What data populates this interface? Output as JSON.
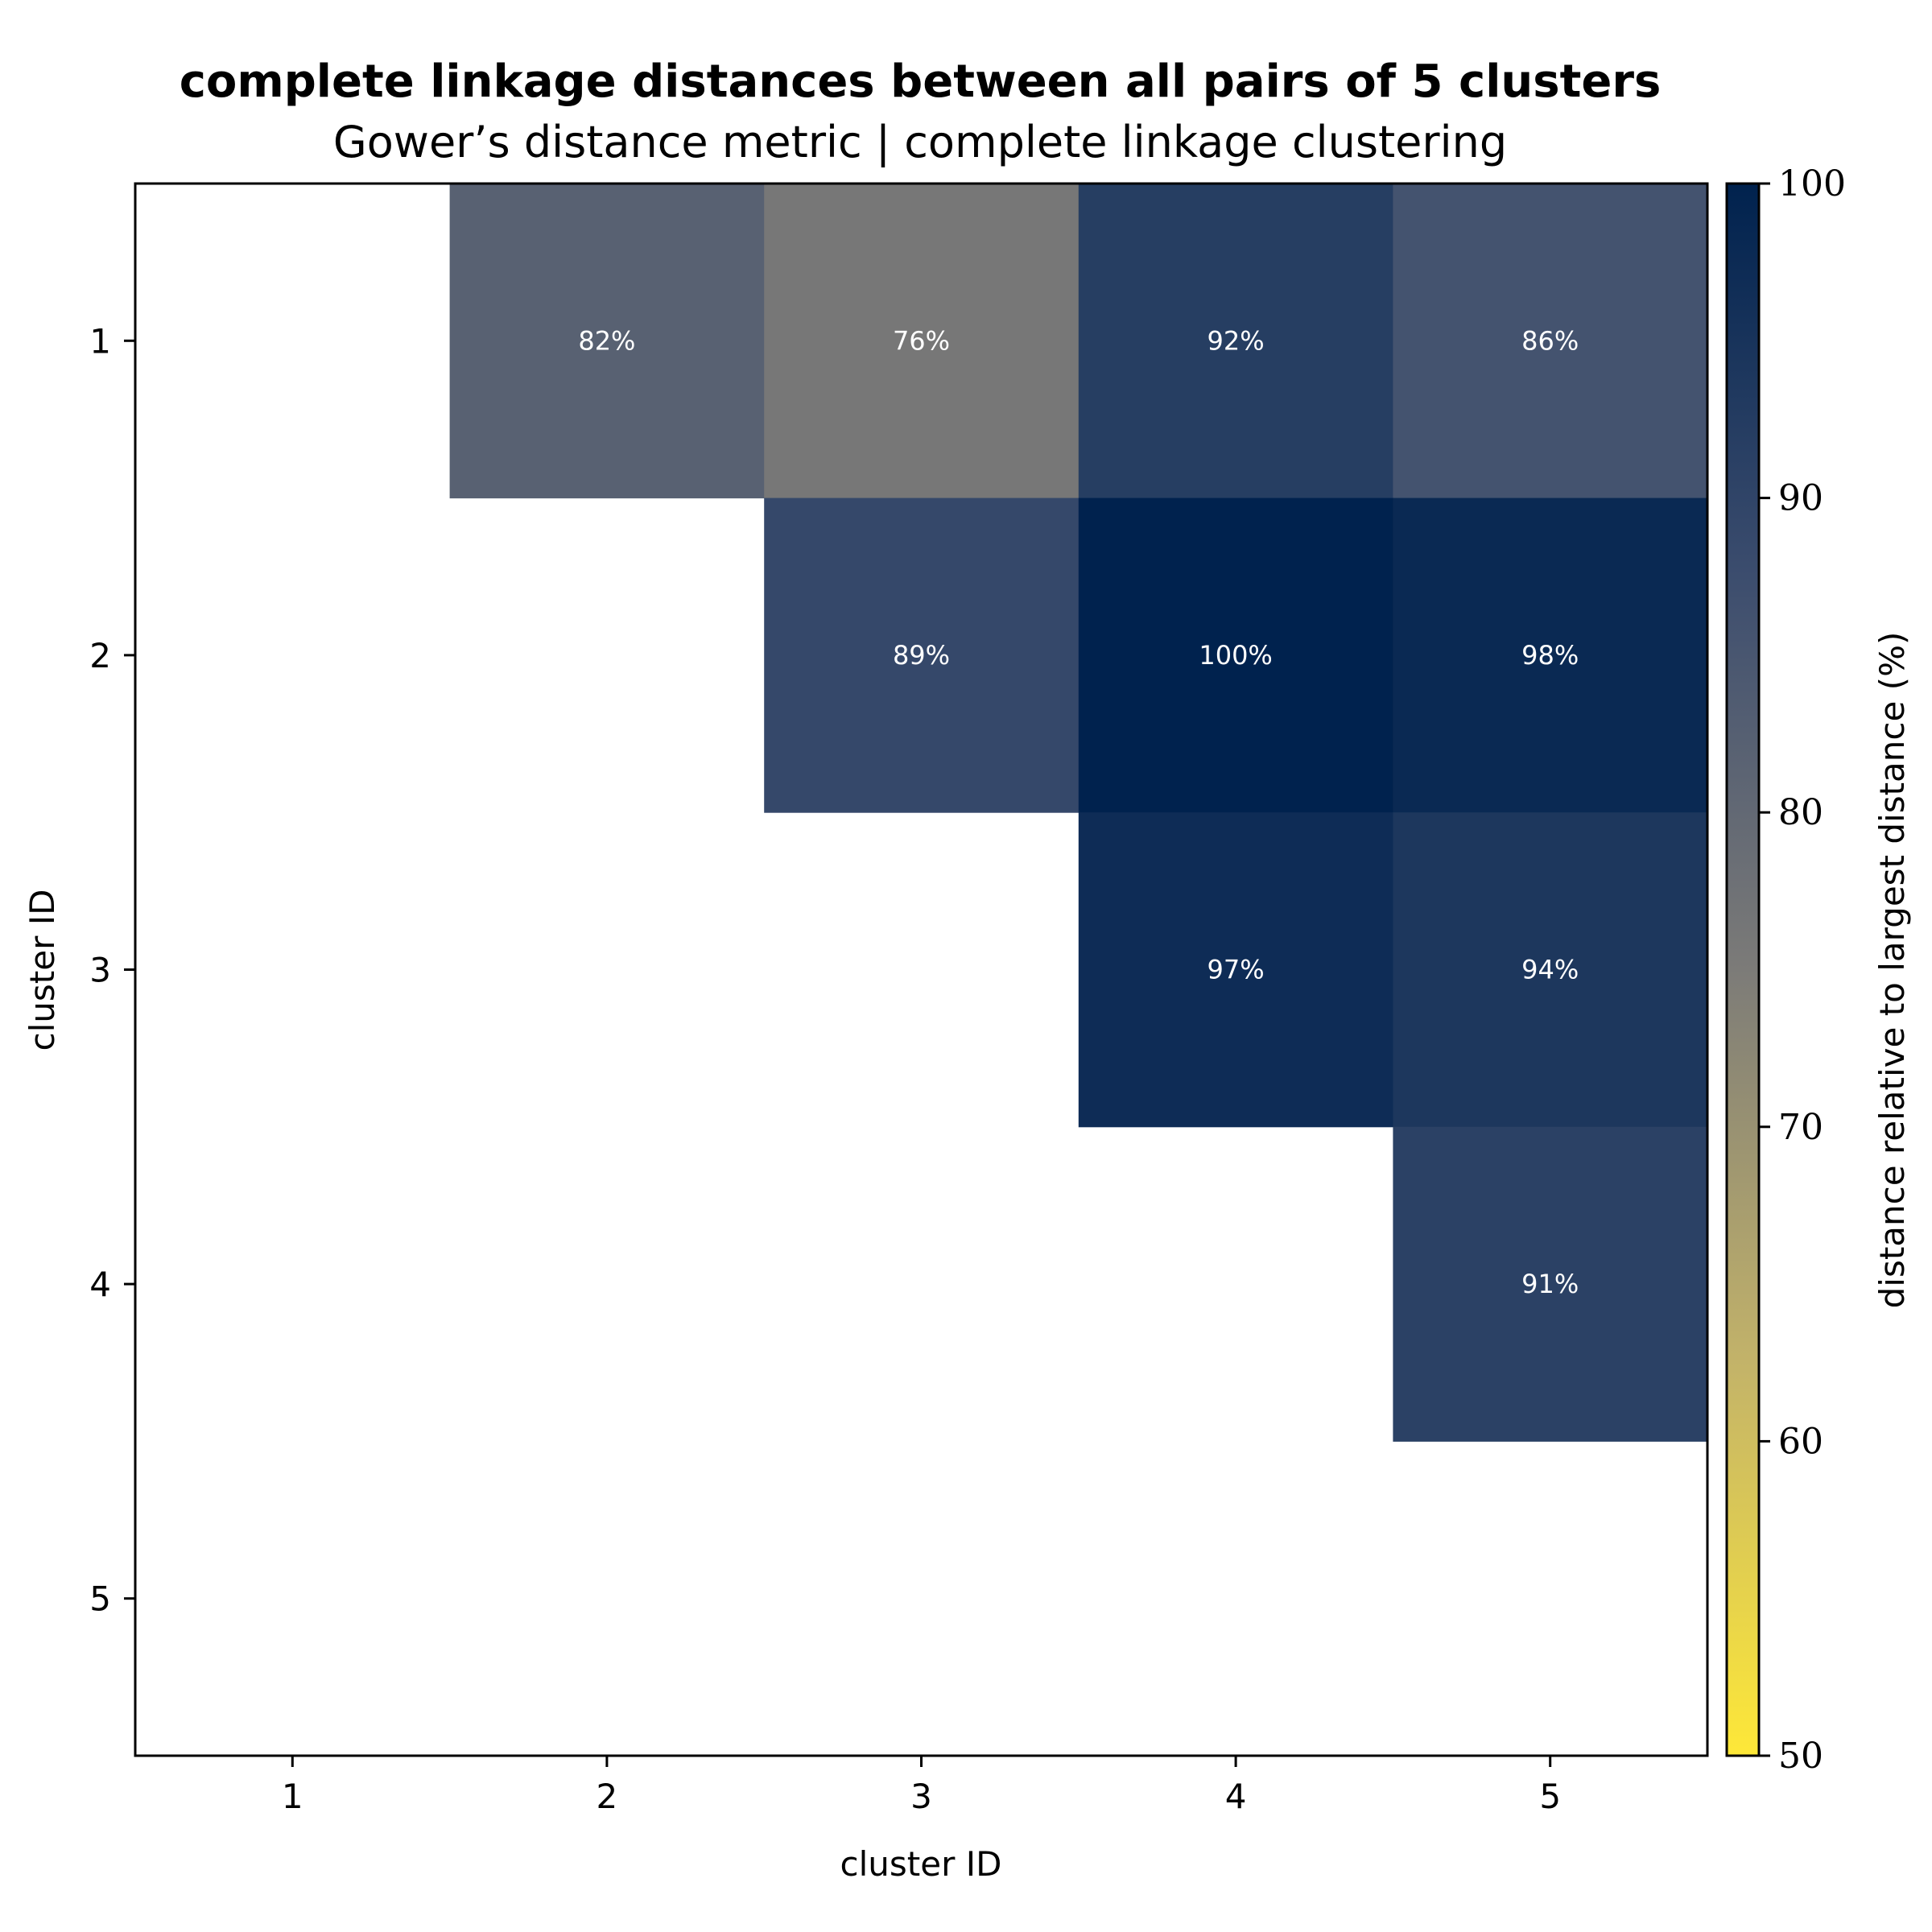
{
  "chart_data": {
    "type": "heatmap",
    "title": "complete linkage distances between all pairs of 5 clusters",
    "subtitle": "Gower’s distance metric | complete linkage clustering",
    "xlabel": "cluster ID",
    "ylabel": "cluster ID",
    "x_categories": [
      "1",
      "2",
      "3",
      "4",
      "5"
    ],
    "y_categories": [
      "1",
      "2",
      "3",
      "4",
      "5"
    ],
    "cells": [
      {
        "row": "1",
        "col": "2",
        "value": 82,
        "label": "82%"
      },
      {
        "row": "1",
        "col": "3",
        "value": 76,
        "label": "76%"
      },
      {
        "row": "1",
        "col": "4",
        "value": 92,
        "label": "92%"
      },
      {
        "row": "1",
        "col": "5",
        "value": 86,
        "label": "86%"
      },
      {
        "row": "2",
        "col": "3",
        "value": 89,
        "label": "89%"
      },
      {
        "row": "2",
        "col": "4",
        "value": 100,
        "label": "100%"
      },
      {
        "row": "2",
        "col": "5",
        "value": 98,
        "label": "98%"
      },
      {
        "row": "3",
        "col": "4",
        "value": 97,
        "label": "97%"
      },
      {
        "row": "3",
        "col": "5",
        "value": 94,
        "label": "94%"
      },
      {
        "row": "4",
        "col": "5",
        "value": 91,
        "label": "91%"
      }
    ],
    "colorbar": {
      "label": "distance relative to largest distance (%)",
      "range": [
        50,
        100
      ],
      "ticks": [
        "50",
        "60",
        "70",
        "80",
        "90",
        "100"
      ],
      "colormap": "cividis",
      "color_low": "#fee838",
      "color_high": "#00224e"
    },
    "grid": false,
    "legend": "none"
  }
}
